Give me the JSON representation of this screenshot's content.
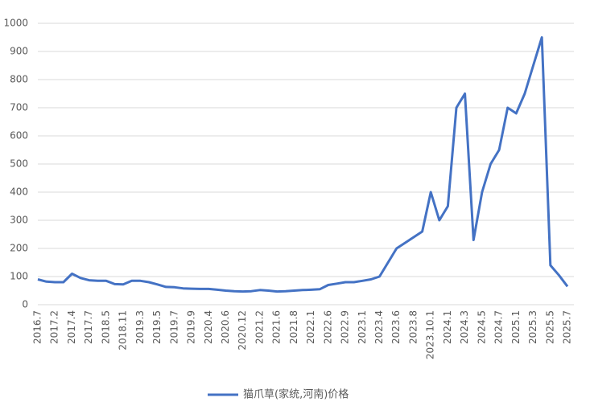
{
  "chart_data": {
    "type": "line",
    "categories": [
      "2016.7",
      null,
      "2017.2",
      null,
      "2017.4",
      null,
      "2017.7",
      null,
      "2018.5",
      null,
      "2018.11",
      null,
      "2019.3",
      null,
      "2019.5",
      null,
      "2019.7",
      null,
      "2019.9",
      null,
      "2020.4",
      null,
      "2020.6",
      null,
      "2020.12",
      null,
      "2021.2",
      null,
      "2021.6",
      null,
      "2021.8",
      null,
      "2022.1",
      null,
      "2022.6",
      null,
      "2022.9",
      null,
      "2023.1",
      null,
      "2023.4",
      null,
      "2023.6",
      null,
      "2023.8",
      null,
      "2023.10.1",
      null,
      "2024.1",
      null,
      "2024.3",
      null,
      "2024.5",
      null,
      "2024.7",
      null,
      "2025.1",
      null,
      "2025.3",
      null,
      "2025.5",
      null,
      "2025.7"
    ],
    "series": [
      {
        "name": "猫爪草(家统,河南)价格",
        "color": "#4472c4",
        "values": [
          90,
          82,
          80,
          80,
          110,
          95,
          87,
          85,
          85,
          73,
          72,
          85,
          85,
          80,
          72,
          63,
          62,
          58,
          57,
          56,
          56,
          53,
          50,
          48,
          47,
          48,
          52,
          50,
          47,
          48,
          50,
          52,
          53,
          55,
          70,
          75,
          80,
          80,
          85,
          90,
          100,
          150,
          200,
          220,
          240,
          260,
          400,
          300,
          350,
          700,
          750,
          230,
          400,
          500,
          550,
          700,
          680,
          750,
          850,
          950,
          140,
          105,
          65
        ]
      }
    ],
    "ylim": [
      0,
      1000
    ],
    "yticks": [
      0,
      100,
      200,
      300,
      400,
      500,
      600,
      700,
      800,
      900,
      1000
    ],
    "grid": true,
    "legend": "bottom"
  }
}
